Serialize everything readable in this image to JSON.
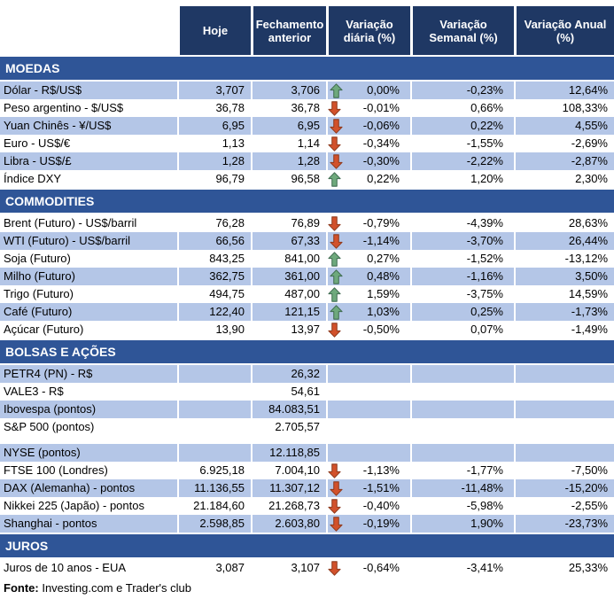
{
  "table": {
    "columns": [
      "Hoje",
      "Fechamento anterior",
      "Variação diária (%)",
      "Variação Semanal (%)",
      "Variação Anual (%)"
    ],
    "sections": [
      {
        "title": "MOEDAS",
        "rows": [
          {
            "label": "Dólar - R$/US$",
            "hoje": "3,707",
            "fechamento": "3,706",
            "arrow": "up",
            "diaria": "0,00%",
            "semanal": "-0,23%",
            "anual": "12,64%",
            "shaded": true
          },
          {
            "label": "Peso argentino - $/US$",
            "hoje": "36,78",
            "fechamento": "36,78",
            "arrow": "down",
            "diaria": "-0,01%",
            "semanal": "0,66%",
            "anual": "108,33%",
            "shaded": false
          },
          {
            "label": "Yuan Chinês - ¥/US$",
            "hoje": "6,95",
            "fechamento": "6,95",
            "arrow": "down",
            "diaria": "-0,06%",
            "semanal": "0,22%",
            "anual": "4,55%",
            "shaded": true
          },
          {
            "label": "Euro - US$/€",
            "hoje": "1,13",
            "fechamento": "1,14",
            "arrow": "down",
            "diaria": "-0,34%",
            "semanal": "-1,55%",
            "anual": "-2,69%",
            "shaded": false
          },
          {
            "label": "Libra - US$/£",
            "hoje": "1,28",
            "fechamento": "1,28",
            "arrow": "down",
            "diaria": "-0,30%",
            "semanal": "-2,22%",
            "anual": "-2,87%",
            "shaded": true
          },
          {
            "label": "Índice DXY",
            "hoje": "96,79",
            "fechamento": "96,58",
            "arrow": "up",
            "diaria": "0,22%",
            "semanal": "1,20%",
            "anual": "2,30%",
            "shaded": false
          }
        ]
      },
      {
        "title": "COMMODITIES",
        "rows": [
          {
            "label": "Brent (Futuro) - US$/barril",
            "hoje": "76,28",
            "fechamento": "76,89",
            "arrow": "down",
            "diaria": "-0,79%",
            "semanal": "-4,39%",
            "anual": "28,63%",
            "shaded": false
          },
          {
            "label": "WTI (Futuro) - US$/barril",
            "hoje": "66,56",
            "fechamento": "67,33",
            "arrow": "down",
            "diaria": "-1,14%",
            "semanal": "-3,70%",
            "anual": "26,44%",
            "shaded": true
          },
          {
            "label": "Soja (Futuro)",
            "hoje": "843,25",
            "fechamento": "841,00",
            "arrow": "up",
            "diaria": "0,27%",
            "semanal": "-1,52%",
            "anual": "-13,12%",
            "shaded": false
          },
          {
            "label": "Milho (Futuro)",
            "hoje": "362,75",
            "fechamento": "361,00",
            "arrow": "up",
            "diaria": "0,48%",
            "semanal": "-1,16%",
            "anual": "3,50%",
            "shaded": true
          },
          {
            "label": "Trigo (Futuro)",
            "hoje": "494,75",
            "fechamento": "487,00",
            "arrow": "up",
            "diaria": "1,59%",
            "semanal": "-3,75%",
            "anual": "14,59%",
            "shaded": false
          },
          {
            "label": "Café (Futuro)",
            "hoje": "122,40",
            "fechamento": "121,15",
            "arrow": "up",
            "diaria": "1,03%",
            "semanal": "0,25%",
            "anual": "-1,73%",
            "shaded": true
          },
          {
            "label": "Açúcar (Futuro)",
            "hoje": "13,90",
            "fechamento": "13,97",
            "arrow": "down",
            "diaria": "-0,50%",
            "semanal": "0,07%",
            "anual": "-1,49%",
            "shaded": false
          }
        ]
      },
      {
        "title": "BOLSAS E AÇÕES",
        "rows": [
          {
            "label": "PETR4 (PN) - R$",
            "hoje": "",
            "fechamento": "26,32",
            "arrow": "",
            "diaria": "",
            "semanal": "",
            "anual": "",
            "shaded": true
          },
          {
            "label": "VALE3 - R$",
            "hoje": "",
            "fechamento": "54,61",
            "arrow": "",
            "diaria": "",
            "semanal": "",
            "anual": "",
            "shaded": false
          },
          {
            "label": "Ibovespa (pontos)",
            "hoje": "",
            "fechamento": "84.083,51",
            "arrow": "",
            "diaria": "",
            "semanal": "",
            "anual": "",
            "shaded": true
          },
          {
            "label": "S&P 500 (pontos)",
            "hoje": "",
            "fechamento": "2.705,57",
            "arrow": "",
            "diaria": "",
            "semanal": "",
            "anual": "",
            "shaded": false
          },
          {
            "spacer": true
          },
          {
            "label": "NYSE (pontos)",
            "hoje": "",
            "fechamento": "12.118,85",
            "arrow": "",
            "diaria": "",
            "semanal": "",
            "anual": "",
            "shaded": true
          },
          {
            "label": "FTSE 100 (Londres)",
            "hoje": "6.925,18",
            "fechamento": "7.004,10",
            "arrow": "down",
            "diaria": "-1,13%",
            "semanal": "-1,77%",
            "anual": "-7,50%",
            "shaded": false
          },
          {
            "label": "DAX (Alemanha) - pontos",
            "hoje": "11.136,55",
            "fechamento": "11.307,12",
            "arrow": "down",
            "diaria": "-1,51%",
            "semanal": "-11,48%",
            "anual": "-15,20%",
            "shaded": true
          },
          {
            "label": "Nikkei 225 (Japão) - pontos",
            "hoje": "21.184,60",
            "fechamento": "21.268,73",
            "arrow": "down",
            "diaria": "-0,40%",
            "semanal": "-5,98%",
            "anual": "-2,55%",
            "shaded": false
          },
          {
            "label": "Shanghai - pontos",
            "hoje": "2.598,85",
            "fechamento": "2.603,80",
            "arrow": "down",
            "diaria": "-0,19%",
            "semanal": "1,90%",
            "anual": "-23,73%",
            "shaded": true
          }
        ]
      },
      {
        "title": "JUROS",
        "rows": [
          {
            "label": "Juros de 10 anos - EUA",
            "hoje": "3,087",
            "fechamento": "3,107",
            "arrow": "down",
            "diaria": "-0,64%",
            "semanal": "-3,41%",
            "anual": "25,33%",
            "shaded": false
          }
        ]
      }
    ]
  },
  "footer": {
    "label": "Fonte:",
    "text": " Investing.com e Trader's club"
  },
  "colors": {
    "header_bg": "#1F3864",
    "section_bg": "#2F5597",
    "row_shaded_bg": "#B4C6E7",
    "arrow_up_fill": "#6EA97C",
    "arrow_up_stroke": "#3F6B50",
    "arrow_down_fill": "#D2512B",
    "arrow_down_stroke": "#8E3A1D"
  },
  "icons": {
    "up": "up-arrow-icon",
    "down": "down-arrow-icon"
  }
}
